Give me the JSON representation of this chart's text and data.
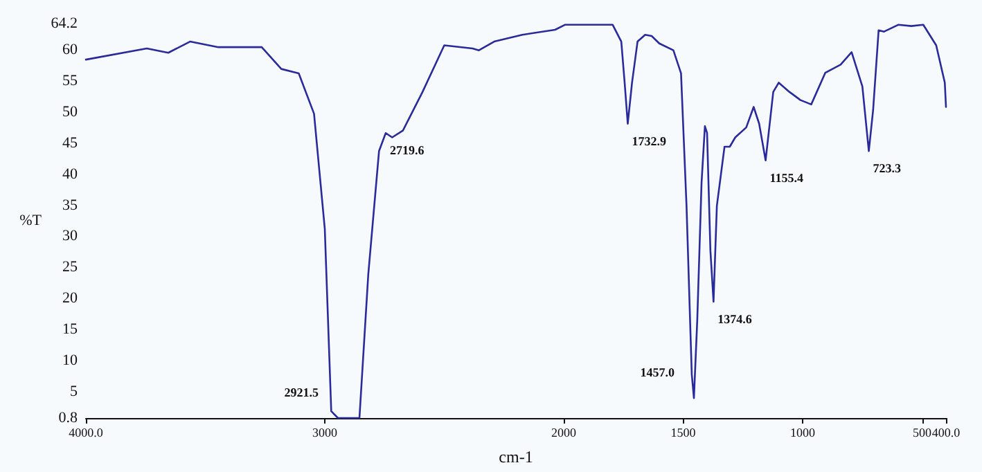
{
  "chart_data": {
    "type": "line",
    "xlabel": "cm-1",
    "ylabel": "%T",
    "x": [
      4000,
      3745,
      3655,
      3564,
      3445,
      3264,
      3182,
      3109,
      3045,
      3000,
      2973,
      2945,
      2855,
      2818,
      2773,
      2745,
      2718,
      2673,
      2591,
      2500,
      2382,
      2355,
      2291,
      2173,
      2036,
      1995,
      1795,
      1759,
      1745,
      1732,
      1714,
      1691,
      1659,
      1632,
      1600,
      1541,
      1509,
      1486,
      1464,
      1455,
      1441,
      1423,
      1409,
      1400,
      1386,
      1373,
      1359,
      1327,
      1305,
      1282,
      1236,
      1205,
      1182,
      1155,
      1123,
      1100,
      1055,
      1009,
      964,
      905,
      841,
      795,
      750,
      723,
      705,
      682,
      659,
      600,
      545,
      495,
      441,
      405,
      400
    ],
    "series": [
      {
        "color": "#2a2a9a",
        "values": [
          58.4,
          60.2,
          59.5,
          61.3,
          60.4,
          60.4,
          56.9,
          56.2,
          49.7,
          31.2,
          1.9,
          0.8,
          0.8,
          23.9,
          43.7,
          46.6,
          45.9,
          47.0,
          53.2,
          60.7,
          60.2,
          59.9,
          61.3,
          62.4,
          63.2,
          64.0,
          64.0,
          61.3,
          54.7,
          48.1,
          54.7,
          61.3,
          62.4,
          62.2,
          61.0,
          59.9,
          56.2,
          34.9,
          7.8,
          4.0,
          16.6,
          38.7,
          47.7,
          46.6,
          27.7,
          19.5,
          34.9,
          44.4,
          44.4,
          45.9,
          47.5,
          50.8,
          48.1,
          42.2,
          53.2,
          54.7,
          53.2,
          51.9,
          51.2,
          56.3,
          57.6,
          59.6,
          54.1,
          43.7,
          50.3,
          63.1,
          62.9,
          64.0,
          63.8,
          64.0,
          60.7,
          54.7,
          50.8
        ]
      }
    ],
    "xlim": [
      4000,
      400
    ],
    "xticks": [
      {
        "value": 4000,
        "label": "4000.0"
      },
      3000,
      2000,
      1500,
      1000,
      500,
      {
        "value": 400,
        "label": "400.0"
      }
    ],
    "ylim": [
      0.8,
      64.2
    ],
    "yticks": [
      0.8,
      5,
      10,
      15,
      20,
      25,
      30,
      35,
      40,
      45,
      50,
      55,
      60,
      64.2
    ],
    "grid": false,
    "marker": "none",
    "line_style": "solid",
    "annotations": [
      {
        "text": "2921.5",
        "x": 2945,
        "y": 0.8
      },
      {
        "text": "2719.6",
        "x": 2745,
        "y": 46.6
      },
      {
        "text": "1732.9",
        "x": 1732,
        "y": 48.1
      },
      {
        "text": "1457.0",
        "x": 1455,
        "y": 4.0
      },
      {
        "text": "1374.6",
        "x": 1373,
        "y": 19.5
      },
      {
        "text": "1155.4",
        "x": 1155,
        "y": 42.2
      },
      {
        "text": "723.3",
        "x": 723,
        "y": 43.7
      }
    ]
  }
}
